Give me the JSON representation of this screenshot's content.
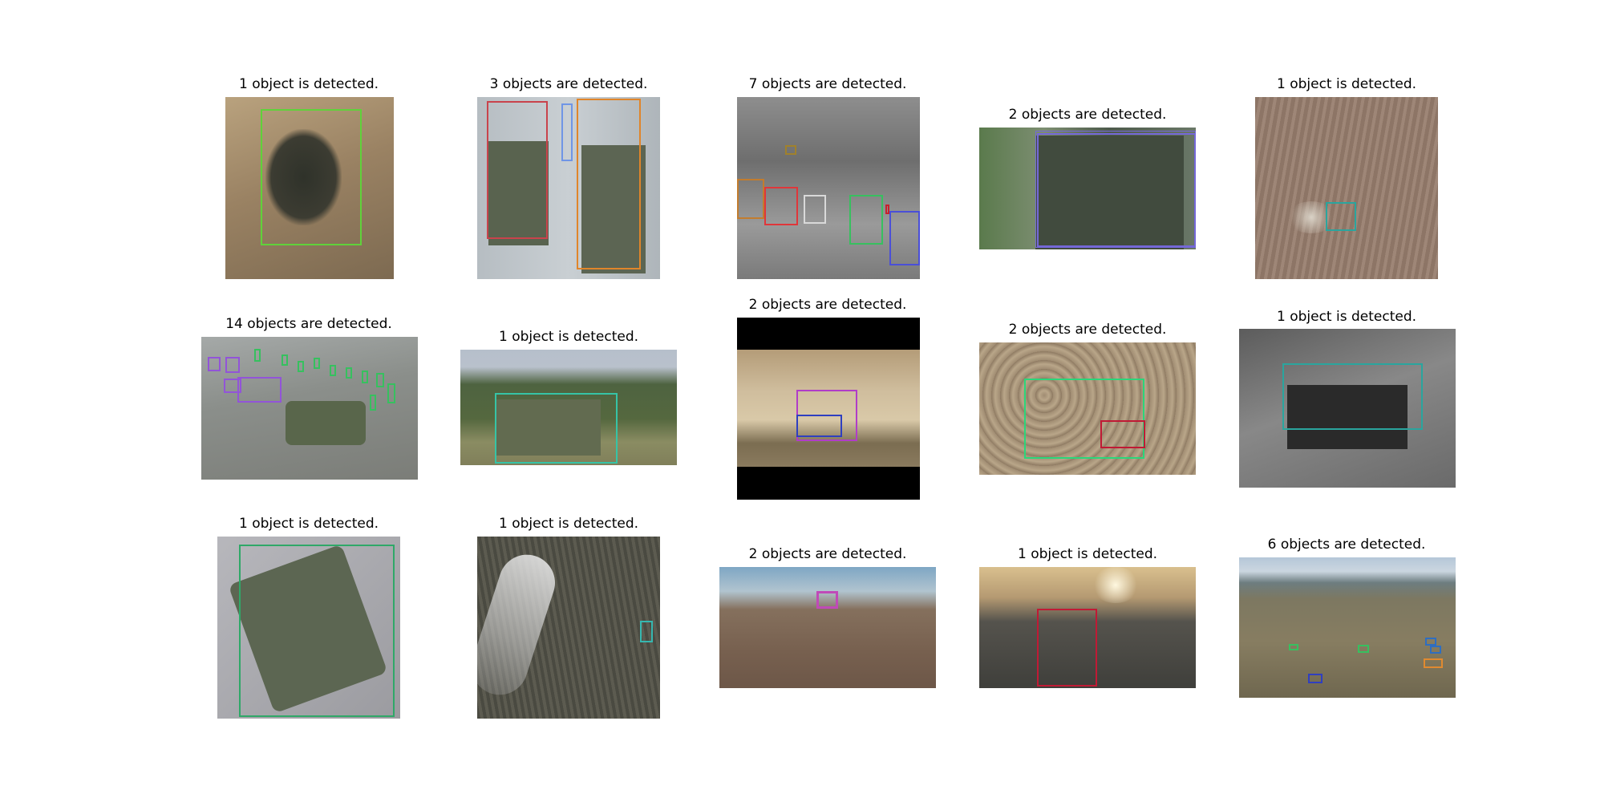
{
  "panels": [
    {
      "caption": "1 object is detected.",
      "box_colors": [
        "#5fd23a"
      ]
    },
    {
      "caption": "3 objects are detected.",
      "box_colors": [
        "#c9434c",
        "#6f95e6",
        "#e0852a"
      ]
    },
    {
      "caption": "7 objects are detected.",
      "box_colors": [
        "#a0812c",
        "#c27c2e",
        "#e0363a",
        "#d9d9d9",
        "#37c05f",
        "#c8212c",
        "#4a4fd8"
      ]
    },
    {
      "caption": "2 objects are detected.",
      "box_colors": [
        "#7468d8",
        "#7468d8"
      ]
    },
    {
      "caption": "1 object is detected.",
      "box_colors": [
        "#2aa59e"
      ]
    },
    {
      "caption": "14 objects are detected.",
      "box_colors": [
        "#9254d8",
        "#9254d8",
        "#37c05f",
        "#37c05f",
        "#37c05f",
        "#37c05f",
        "#37c05f",
        "#37c05f",
        "#37c05f",
        "#37c05f",
        "#37c05f",
        "#9254d8",
        "#9254d8",
        "#37c05f"
      ]
    },
    {
      "caption": "1 object is detected.",
      "box_colors": [
        "#36c4a6"
      ]
    },
    {
      "caption": "2 objects are detected.",
      "box_colors": [
        "#b03dc8",
        "#2f3fc0"
      ]
    },
    {
      "caption": "2 objects are detected.",
      "box_colors": [
        "#2bd67a",
        "#c01a35"
      ]
    },
    {
      "caption": "1 object is detected.",
      "box_colors": [
        "#2aa59e"
      ]
    },
    {
      "caption": "1 object is detected.",
      "box_colors": [
        "#2fa868"
      ]
    },
    {
      "caption": "1 object is detected.",
      "box_colors": [
        "#36b7b0"
      ]
    },
    {
      "caption": "2 objects are detected.",
      "box_colors": [
        "#c04ab8",
        "#c04ab8"
      ]
    },
    {
      "caption": "1 object is detected.",
      "box_colors": [
        "#c01a35"
      ]
    },
    {
      "caption": "6 objects are detected.",
      "box_colors": [
        "#2f6ec0",
        "#37c05f",
        "#37c05f",
        "#2f6ec0",
        "#e08a30",
        "#2f3fc0"
      ]
    }
  ]
}
